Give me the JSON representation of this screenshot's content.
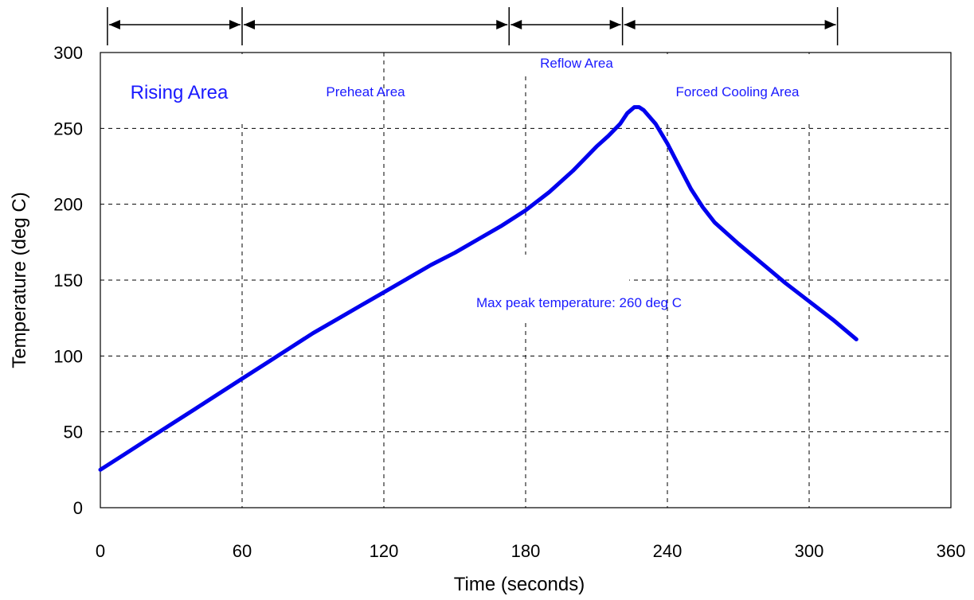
{
  "chart_data": {
    "type": "line",
    "title": "",
    "xlabel": "Time (seconds)",
    "ylabel": "Temperature (deg C)",
    "xlim": [
      0,
      360
    ],
    "ylim": [
      0,
      300
    ],
    "x_ticks": [
      "0",
      "60",
      "120",
      "180",
      "240",
      "300",
      "360"
    ],
    "y_ticks": [
      "0",
      "50",
      "100",
      "150",
      "200",
      "250",
      "300"
    ],
    "grid": true,
    "series_color": "#0000ee",
    "series": [
      {
        "x": [
          0,
          10,
          20,
          30,
          40,
          50,
          60,
          70,
          80,
          90,
          100,
          110,
          120,
          130,
          140,
          150,
          160,
          170,
          180,
          190,
          200,
          210,
          215,
          220,
          223,
          226,
          228,
          230,
          235,
          240,
          245,
          250,
          255,
          260,
          270,
          280,
          290,
          300,
          310,
          320
        ],
        "y": [
          25,
          35,
          45,
          55,
          65,
          75,
          85,
          95,
          105,
          115,
          124,
          133,
          142,
          151,
          160,
          168,
          177,
          186,
          196,
          208,
          222,
          238,
          245,
          253,
          260,
          264,
          264,
          262,
          253,
          240,
          225,
          210,
          198,
          188,
          174,
          161,
          148,
          136,
          124,
          111
        ]
      }
    ],
    "phases": [
      {
        "label": "Rising Area",
        "start": 3,
        "end": 60
      },
      {
        "label": "Preheat Area",
        "start": 60,
        "end": 173
      },
      {
        "label": "Reflow Area",
        "start": 173,
        "end": 221
      },
      {
        "label": "Forced Cooling Area",
        "start": 221,
        "end": 312
      }
    ],
    "annotations": [
      "Max peak temperature: 260 deg C"
    ]
  }
}
